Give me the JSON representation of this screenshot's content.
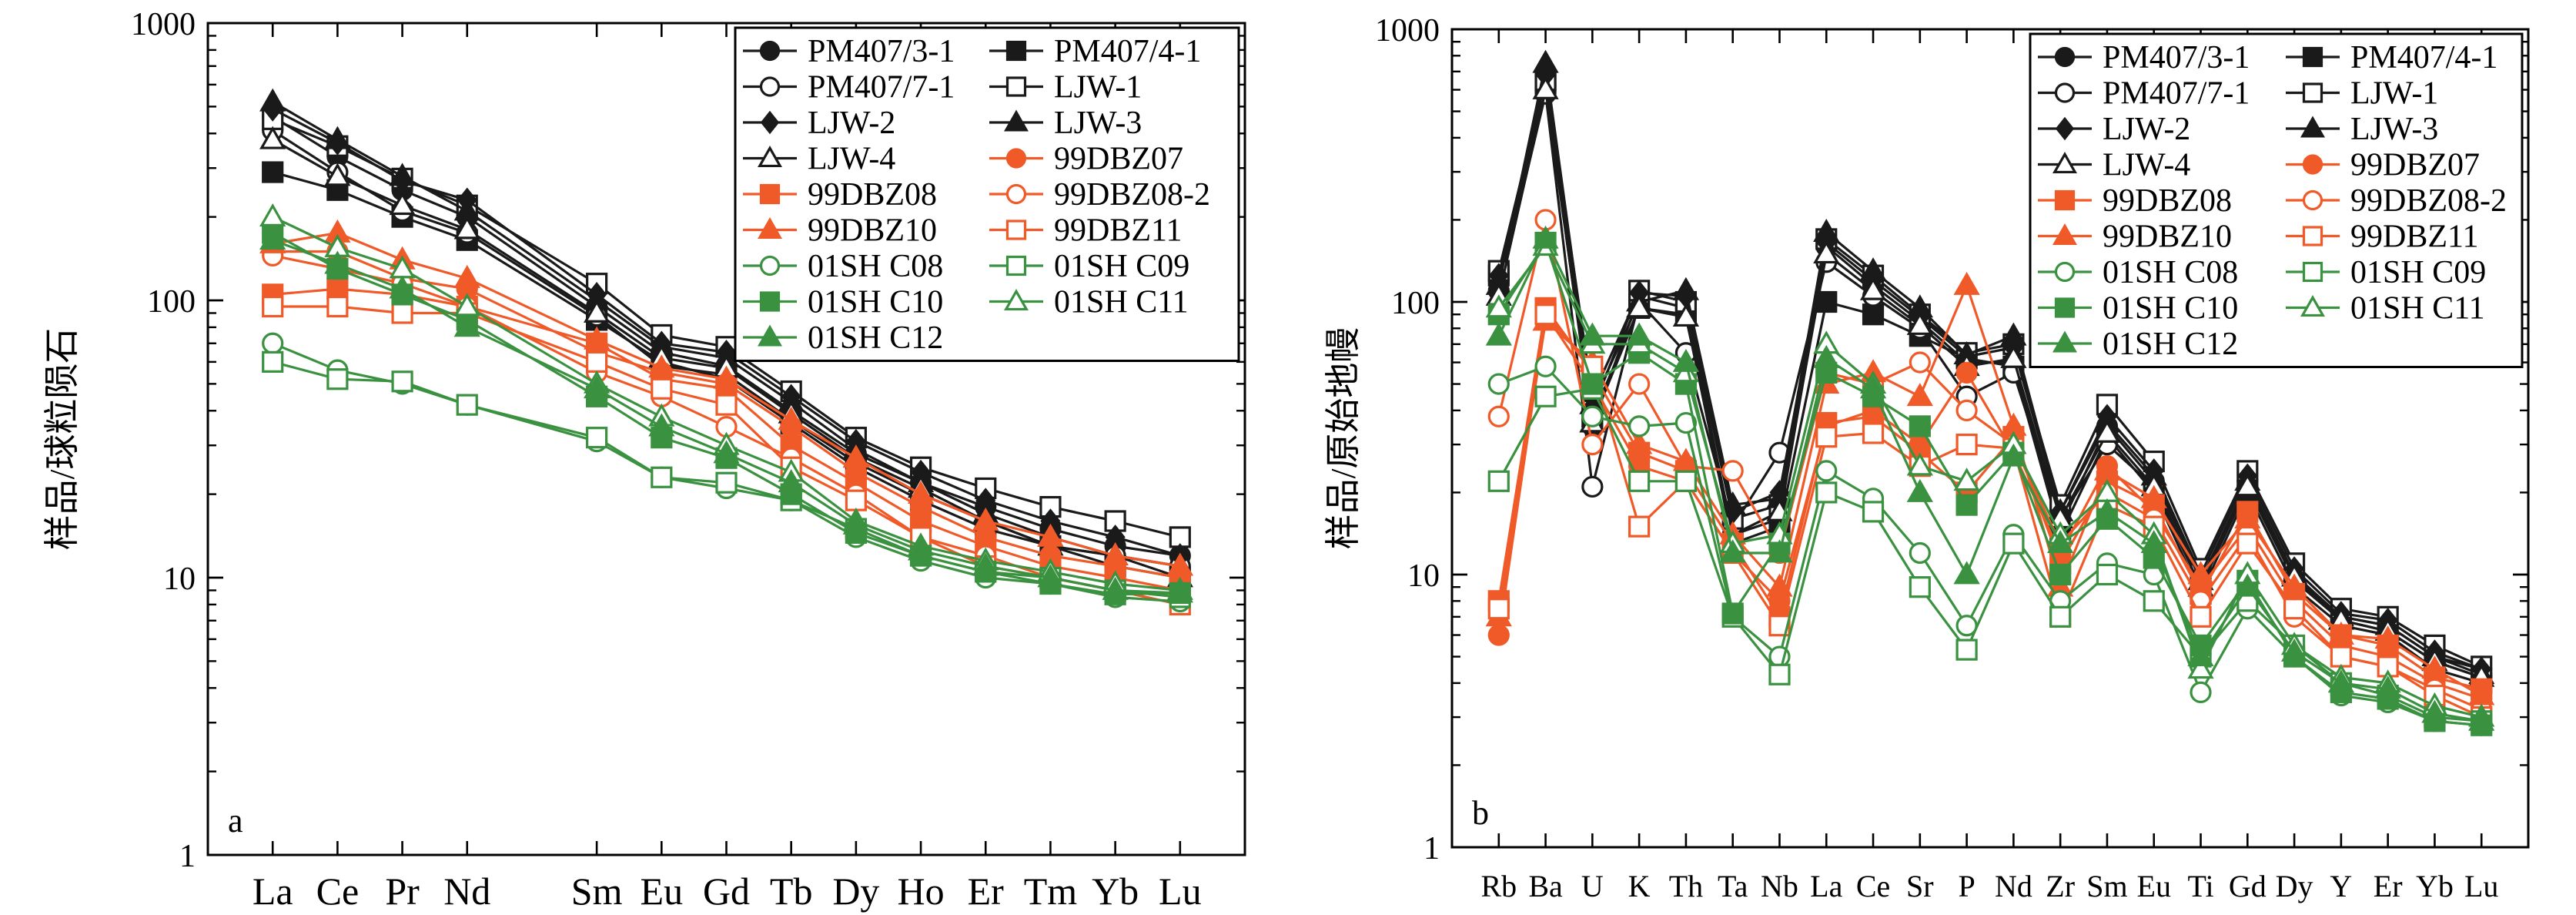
{
  "colors": {
    "black": "#1a1a1a",
    "orange": "#f05a28",
    "green": "#3a9140"
  },
  "legend_entries": [
    {
      "name": "PM407/3-1",
      "color": "#1a1a1a",
      "marker": "circle",
      "filled": true
    },
    {
      "name": "PM407/4-1",
      "color": "#1a1a1a",
      "marker": "square",
      "filled": true
    },
    {
      "name": "PM407/7-1",
      "color": "#1a1a1a",
      "marker": "circle",
      "filled": false
    },
    {
      "name": "LJW-1",
      "color": "#1a1a1a",
      "marker": "square",
      "filled": false
    },
    {
      "name": "LJW-2",
      "color": "#1a1a1a",
      "marker": "diamond",
      "filled": true
    },
    {
      "name": "LJW-3",
      "color": "#1a1a1a",
      "marker": "triangle",
      "filled": true
    },
    {
      "name": "LJW-4",
      "color": "#1a1a1a",
      "marker": "triangle",
      "filled": false
    },
    {
      "name": "99DBZ07",
      "color": "#f05a28",
      "marker": "circle",
      "filled": true
    },
    {
      "name": "99DBZ08",
      "color": "#f05a28",
      "marker": "square",
      "filled": true
    },
    {
      "name": "99DBZ08-2",
      "color": "#f05a28",
      "marker": "circle",
      "filled": false
    },
    {
      "name": "99DBZ10",
      "color": "#f05a28",
      "marker": "triangle",
      "filled": true
    },
    {
      "name": "99DBZ11",
      "color": "#f05a28",
      "marker": "square",
      "filled": false
    },
    {
      "name": "01SH C08",
      "color": "#3a9140",
      "marker": "circle",
      "filled": false
    },
    {
      "name": "01SH C09",
      "color": "#3a9140",
      "marker": "square",
      "filled": false
    },
    {
      "name": "01SH C10",
      "color": "#3a9140",
      "marker": "square",
      "filled": true
    },
    {
      "name": "01SH C11",
      "color": "#3a9140",
      "marker": "triangle",
      "filled": false
    },
    {
      "name": "01SH C12",
      "color": "#3a9140",
      "marker": "triangle",
      "filled": true
    }
  ],
  "chart_data": [
    {
      "type": "line",
      "panel_label": "a",
      "ylabel": "样品/球粒陨石",
      "yscale": "log",
      "ylim": [
        1,
        1000
      ],
      "y_ticks": [
        "1",
        "10",
        "100",
        "1000"
      ],
      "x_positions": [
        1,
        2,
        3,
        4,
        6,
        7,
        8,
        9,
        10,
        11,
        12,
        13,
        14,
        15
      ],
      "categories": [
        "La",
        "Ce",
        "Pr",
        "Nd",
        "Sm",
        "Eu",
        "Gd",
        "Tb",
        "Dy",
        "Ho",
        "Er",
        "Tm",
        "Yb",
        "Lu"
      ],
      "xlim": [
        0,
        16
      ],
      "legend_position": "top-right",
      "series": [
        {
          "name": "PM407/3-1",
          "values": [
            460,
            330,
            250,
            200,
            95,
            65,
            58,
            40,
            28,
            22,
            18,
            15,
            13,
            12
          ]
        },
        {
          "name": "PM407/4-1",
          "values": [
            290,
            250,
            200,
            165,
            85,
            60,
            52,
            36,
            25,
            19,
            15,
            13,
            11,
            10
          ]
        },
        {
          "name": "PM407/7-1",
          "values": [
            410,
            290,
            210,
            175,
            88,
            58,
            54,
            37,
            26,
            20,
            16,
            13,
            12,
            11
          ]
        },
        {
          "name": "LJW-1",
          "values": [
            450,
            360,
            275,
            220,
            115,
            75,
            68,
            47,
            32,
            25,
            21,
            18,
            16,
            14
          ]
        },
        {
          "name": "LJW-2",
          "values": [
            490,
            370,
            270,
            230,
            105,
            70,
            65,
            45,
            31,
            24,
            19,
            16,
            14,
            12
          ]
        },
        {
          "name": "LJW-3",
          "values": [
            520,
            380,
            280,
            210,
            100,
            68,
            62,
            43,
            29,
            22,
            17,
            14,
            12,
            11
          ]
        },
        {
          "name": "LJW-4",
          "values": [
            380,
            280,
            220,
            180,
            90,
            62,
            57,
            39,
            27,
            21,
            16,
            13,
            12,
            10
          ]
        },
        {
          "name": "99DBZ07",
          "values": [
            150,
            150,
            120,
            110,
            65,
            55,
            50,
            35,
            24,
            18,
            14,
            12,
            11,
            10
          ]
        },
        {
          "name": "99DBZ08",
          "values": [
            105,
            110,
            105,
            95,
            70,
            52,
            48,
            30,
            22,
            16,
            13,
            11,
            10,
            9
          ]
        },
        {
          "name": "99DBZ08-2",
          "values": [
            145,
            130,
            115,
            95,
            55,
            45,
            35,
            27,
            20,
            14,
            12,
            10,
            9,
            8.5
          ]
        },
        {
          "name": "99DBZ10",
          "values": [
            160,
            175,
            140,
            120,
            72,
            57,
            52,
            37,
            27,
            20,
            16,
            14,
            12,
            11
          ]
        },
        {
          "name": "99DBZ11",
          "values": [
            95,
            95,
            90,
            90,
            60,
            48,
            42,
            25,
            19,
            14,
            11,
            10,
            9,
            8
          ]
        },
        {
          "name": "01SH C08",
          "values": [
            70,
            56,
            50,
            42,
            31,
            23,
            21,
            19,
            14,
            11.5,
            10,
            9.5,
            8.5,
            8.2
          ]
        },
        {
          "name": "01SH C09",
          "values": [
            60,
            52,
            51,
            42,
            32,
            23,
            22,
            19,
            15,
            12,
            10.5,
            10,
            9,
            8.5
          ]
        },
        {
          "name": "01SH C10",
          "values": [
            175,
            130,
            105,
            85,
            45,
            32,
            27,
            20,
            14.5,
            12,
            10.5,
            9.5,
            8.7,
            8.8
          ]
        },
        {
          "name": "01SH C11",
          "values": [
            200,
            155,
            130,
            95,
            50,
            38,
            30,
            24,
            16,
            13,
            11.5,
            10.5,
            9.5,
            9
          ]
        },
        {
          "name": "01SH C12",
          "values": [
            165,
            135,
            110,
            80,
            48,
            35,
            28,
            22,
            15.5,
            12.5,
            11,
            10,
            9,
            8.8
          ]
        }
      ]
    },
    {
      "type": "line",
      "panel_label": "b",
      "ylabel": "样品/原始地幔",
      "yscale": "log",
      "ylim": [
        1,
        1000
      ],
      "y_ticks": [
        "1",
        "10",
        "100",
        "1000"
      ],
      "categories": [
        "Rb",
        "Ba",
        "U",
        "K",
        "Th",
        "Ta",
        "Nb",
        "La",
        "Ce",
        "Sr",
        "P",
        "Nd",
        "Zr",
        "Sm",
        "Eu",
        "Ti",
        "Gd",
        "Dy",
        "Y",
        "Er",
        "Yb",
        "Lu"
      ],
      "legend_position": "top-right",
      "series": [
        {
          "name": "PM407/3-1",
          "values": [
            120,
            620,
            35,
            105,
            95,
            14,
            16,
            160,
            115,
            85,
            60,
            60,
            15,
            35,
            22,
            9,
            22,
            10,
            7,
            6.5,
            5,
            4.5
          ]
        },
        {
          "name": "PM407/4-1",
          "values": [
            125,
            640,
            38,
            95,
            90,
            13,
            15,
            100,
            90,
            75,
            62,
            58,
            14,
            32,
            20,
            8.5,
            20,
            9,
            6.5,
            6,
            4.5,
            4
          ]
        },
        {
          "name": "PM407/7-1",
          "values": [
            110,
            580,
            21,
            100,
            65,
            15,
            28,
            140,
            105,
            80,
            45,
            55,
            16,
            30,
            21,
            9,
            21,
            9.5,
            6.8,
            6.2,
            4.8,
            4.2
          ]
        },
        {
          "name": "LJW-1",
          "values": [
            130,
            650,
            40,
            110,
            100,
            16,
            18,
            170,
            125,
            90,
            65,
            70,
            18,
            42,
            26,
            10.5,
            24,
            11,
            7.5,
            7,
            5.5,
            4.6
          ]
        },
        {
          "name": "LJW-2",
          "values": [
            125,
            680,
            45,
            108,
            105,
            17,
            20,
            165,
            120,
            88,
            63,
            68,
            17,
            38,
            24,
            10,
            23,
            10.5,
            7.2,
            6.8,
            5.2,
            4.5
          ]
        },
        {
          "name": "LJW-3",
          "values": [
            115,
            750,
            42,
            100,
            110,
            18,
            19,
            180,
            130,
            95,
            64,
            75,
            17,
            36,
            23,
            9.5,
            22,
            10,
            7,
            6.5,
            5,
            4.3
          ]
        },
        {
          "name": "LJW-4",
          "values": [
            105,
            600,
            36,
            95,
            88,
            14,
            17,
            150,
            110,
            82,
            58,
            62,
            16,
            33,
            21,
            9,
            21,
            9.8,
            6.8,
            6.2,
            4.8,
            4.2
          ]
        },
        {
          "name": "99DBZ07",
          "values": [
            6,
            90,
            50,
            25,
            22,
            12,
            8,
            35,
            40,
            30,
            55,
            28,
            12,
            25,
            17,
            9,
            15,
            8,
            5.5,
            5,
            4,
            3.5
          ]
        },
        {
          "name": "99DBZ08",
          "values": [
            8,
            95,
            55,
            28,
            24,
            13,
            7,
            36,
            38,
            28,
            20,
            32,
            11,
            22,
            18,
            8.5,
            17,
            8.5,
            6,
            5.5,
            4.2,
            3.8
          ]
        },
        {
          "name": "99DBZ08-2",
          "values": [
            38,
            200,
            30,
            50,
            25,
            24,
            12,
            55,
            50,
            60,
            40,
            30,
            13,
            20,
            16,
            8,
            14,
            7,
            5,
            4.6,
            3.8,
            3.2
          ]
        },
        {
          "name": "99DBZ10",
          "values": [
            7,
            85,
            60,
            30,
            26,
            14,
            9,
            50,
            55,
            45,
            115,
            35,
            9,
            24,
            19,
            10,
            16,
            9,
            6,
            5.8,
            4.5,
            3.6
          ]
        },
        {
          "name": "99DBZ11",
          "values": [
            7.5,
            90,
            58,
            15,
            22,
            12,
            6.5,
            32,
            33,
            25,
            30,
            29,
            7,
            18,
            15,
            7,
            13,
            7.5,
            5,
            4.6,
            3.6,
            3
          ]
        },
        {
          "name": "01SH C08",
          "values": [
            50,
            58,
            38,
            35,
            36,
            7,
            5,
            24,
            19,
            12,
            6.5,
            14,
            8,
            11,
            10,
            3.7,
            7.5,
            5,
            3.6,
            3.4,
            2.9,
            2.8
          ]
        },
        {
          "name": "01SH C09",
          "values": [
            22,
            45,
            48,
            22,
            22,
            7,
            4.3,
            20,
            17,
            9,
            5.3,
            13,
            7,
            10,
            8,
            5,
            8,
            5.5,
            4,
            3.6,
            3,
            2.9
          ]
        },
        {
          "name": "01SH C10",
          "values": [
            90,
            165,
            50,
            65,
            50,
            7.2,
            13,
            55,
            45,
            35,
            18,
            28,
            10,
            16,
            11.5,
            5.5,
            9.5,
            5,
            3.7,
            3.5,
            2.9,
            2.8
          ]
        },
        {
          "name": "01SH C11",
          "values": [
            95,
            160,
            70,
            70,
            55,
            13,
            14,
            70,
            50,
            25,
            22,
            30,
            14,
            20,
            14,
            4.5,
            10,
            5.5,
            4.2,
            4,
            3.3,
            3
          ]
        },
        {
          "name": "01SH C12",
          "values": [
            75,
            170,
            75,
            75,
            60,
            12,
            12,
            62,
            48,
            20,
            10,
            27,
            13,
            17,
            13,
            5,
            9,
            5.2,
            4,
            3.8,
            3.1,
            2.9
          ]
        }
      ]
    }
  ]
}
